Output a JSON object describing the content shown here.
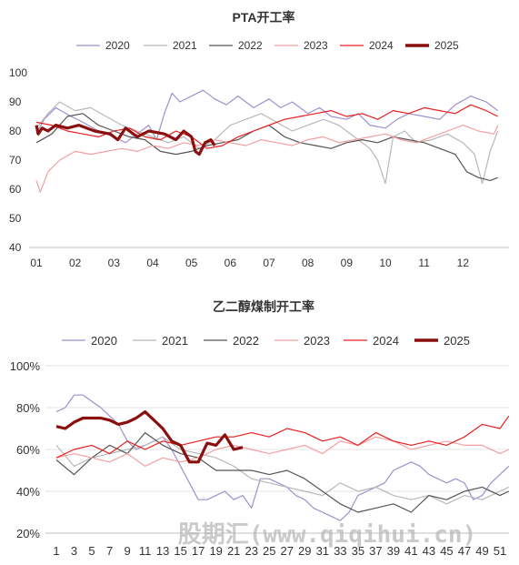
{
  "watermark": "股期汇(www.qiqihui.cn)",
  "chart_data": [
    {
      "type": "line",
      "title": "PTA开工率",
      "ylim": [
        40,
        100
      ],
      "yticks": [
        "40",
        "50",
        "60",
        "70",
        "80",
        "90",
        "100"
      ],
      "x_categories": [
        "01",
        "02",
        "03",
        "04",
        "05",
        "06",
        "07",
        "08",
        "09",
        "10",
        "11",
        "12"
      ],
      "grid": false,
      "legend_position": "top",
      "series": [
        {
          "name": "2020",
          "color": "#9e8fd0",
          "x": [
            1,
            1.2,
            1.5,
            1.9,
            2.2,
            2.6,
            3.0,
            3.3,
            3.6,
            3.9,
            4.1,
            4.3,
            4.5,
            4.7,
            5.0,
            5.3,
            5.6,
            5.9,
            6.2,
            6.6,
            7.0,
            7.3,
            7.6,
            8.0,
            8.3,
            8.6,
            9.0,
            9.3,
            9.6,
            10.0,
            10.3,
            10.6,
            11.0,
            11.4,
            11.8,
            12.2,
            12.6,
            12.9
          ],
          "y": [
            79,
            84,
            88,
            85,
            83,
            80,
            78,
            76,
            79,
            82,
            77,
            86,
            93,
            90,
            92,
            94,
            91,
            89,
            92,
            88,
            91,
            88,
            90,
            86,
            88,
            85,
            84,
            86,
            82,
            81,
            84,
            86,
            85,
            84,
            89,
            92,
            90,
            87
          ]
        },
        {
          "name": "2021",
          "color": "#b8b8b8",
          "x": [
            1,
            1.3,
            1.6,
            2.0,
            2.4,
            2.8,
            3.2,
            3.6,
            4.0,
            4.4,
            4.8,
            5.2,
            5.6,
            6.0,
            6.4,
            6.8,
            7.2,
            7.6,
            8.0,
            8.4,
            8.8,
            9.2,
            9.6,
            9.8,
            10.0,
            10.2,
            10.5,
            10.8,
            11.2,
            11.6,
            12.0,
            12.3,
            12.5,
            12.7,
            12.9
          ],
          "y": [
            81,
            86,
            90,
            87,
            88,
            85,
            82,
            80,
            78,
            76,
            78,
            74,
            77,
            82,
            84,
            86,
            83,
            80,
            82,
            84,
            82,
            78,
            74,
            70,
            62,
            78,
            80,
            76,
            77,
            79,
            76,
            72,
            62,
            73,
            80
          ]
        },
        {
          "name": "2022",
          "color": "#555555",
          "x": [
            1,
            1.4,
            1.8,
            2.2,
            2.6,
            3.0,
            3.4,
            3.8,
            4.2,
            4.6,
            5.0,
            5.4,
            5.8,
            6.2,
            6.6,
            7.0,
            7.4,
            7.8,
            8.2,
            8.6,
            9.0,
            9.4,
            9.8,
            10.2,
            10.6,
            11.0,
            11.4,
            11.8,
            12.1,
            12.4,
            12.7,
            12.9
          ],
          "y": [
            76,
            79,
            85,
            86,
            82,
            80,
            78,
            77,
            73,
            72,
            73,
            75,
            76,
            77,
            80,
            82,
            78,
            76,
            75,
            74,
            76,
            77,
            76,
            78,
            77,
            76,
            74,
            72,
            66,
            64,
            63,
            64
          ]
        },
        {
          "name": "2023",
          "color": "#f4a0a0",
          "x": [
            1,
            1.1,
            1.3,
            1.6,
            2.0,
            2.4,
            2.8,
            3.2,
            3.6,
            4.0,
            4.4,
            4.8,
            5.2,
            5.6,
            6.0,
            6.4,
            6.8,
            7.2,
            7.6,
            8.0,
            8.4,
            8.8,
            9.2,
            9.6,
            10.0,
            10.4,
            10.8,
            11.2,
            11.6,
            12.0,
            12.4,
            12.8,
            12.9
          ],
          "y": [
            63,
            59,
            66,
            70,
            73,
            72,
            73,
            74,
            73,
            75,
            74,
            76,
            75,
            77,
            76,
            75,
            77,
            76,
            75,
            77,
            78,
            76,
            77,
            78,
            79,
            77,
            76,
            78,
            80,
            82,
            80,
            79,
            82
          ]
        },
        {
          "name": "2024",
          "color": "#e82020",
          "x": [
            1,
            1.4,
            1.8,
            2.2,
            2.6,
            3.0,
            3.4,
            3.8,
            4.2,
            4.6,
            5.0,
            5.4,
            5.8,
            6.2,
            6.6,
            7.0,
            7.4,
            7.8,
            8.2,
            8.6,
            9.0,
            9.4,
            9.8,
            10.2,
            10.6,
            11.0,
            11.4,
            11.8,
            12.2,
            12.6,
            12.9
          ],
          "y": [
            83,
            82,
            80,
            79,
            78,
            80,
            81,
            78,
            77,
            80,
            78,
            74,
            75,
            78,
            80,
            82,
            84,
            85,
            86,
            87,
            85,
            86,
            84,
            87,
            86,
            88,
            87,
            86,
            89,
            87,
            85
          ]
        },
        {
          "name": "2025",
          "color": "#8b0f0f",
          "x": [
            1,
            1.05,
            1.15,
            1.3,
            1.5,
            1.8,
            2.1,
            2.5,
            2.9,
            3.1,
            3.3,
            3.6,
            3.9,
            4.3,
            4.6,
            4.8,
            5.0,
            5.1,
            5.2,
            5.35,
            5.5,
            5.6
          ],
          "y": [
            82,
            79,
            81,
            80,
            82,
            81,
            82,
            80,
            79,
            77,
            81,
            78,
            80,
            79,
            77,
            80,
            78,
            73,
            72,
            76,
            77,
            75
          ]
        }
      ]
    },
    {
      "type": "line",
      "title": "乙二醇煤制开工率",
      "ylim": [
        20,
        100
      ],
      "yticks": [
        "20%",
        "40%",
        "60%",
        "80%",
        "100%"
      ],
      "x_categories": [
        "1",
        "3",
        "5",
        "7",
        "9",
        "11",
        "13",
        "15",
        "17",
        "19",
        "21",
        "23",
        "25",
        "27",
        "29",
        "31",
        "33",
        "35",
        "37",
        "39",
        "41",
        "43",
        "45",
        "47",
        "49",
        "51"
      ],
      "grid": true,
      "legend_position": "top",
      "series": [
        {
          "name": "2020",
          "color": "#9e8fd0",
          "x": [
            1,
            2,
            3,
            4,
            5,
            6,
            7,
            8,
            9,
            10,
            11,
            12,
            13,
            14,
            15,
            16,
            17,
            18,
            19,
            20,
            21,
            22,
            23,
            24,
            25,
            26,
            27,
            28,
            29,
            30,
            31,
            32,
            33,
            34,
            35,
            36,
            37,
            38,
            39,
            40,
            41,
            42,
            43,
            44,
            45,
            46,
            47,
            48,
            49,
            50,
            51,
            52
          ],
          "y": [
            78,
            80,
            86,
            86,
            83,
            80,
            76,
            72,
            64,
            60,
            62,
            64,
            66,
            60,
            52,
            44,
            36,
            36,
            38,
            40,
            36,
            38,
            32,
            46,
            46,
            44,
            42,
            38,
            36,
            32,
            30,
            28,
            26,
            30,
            38,
            40,
            42,
            44,
            50,
            52,
            54,
            52,
            48,
            46,
            44,
            46,
            44,
            36,
            38,
            44,
            48,
            52
          ]
        },
        {
          "name": "2021",
          "color": "#b8b8b8",
          "x": [
            1,
            3,
            5,
            7,
            9,
            11,
            13,
            15,
            17,
            19,
            21,
            23,
            25,
            27,
            29,
            31,
            33,
            35,
            37,
            39,
            41,
            43,
            45,
            47,
            49,
            51,
            52
          ],
          "y": [
            62,
            52,
            56,
            58,
            60,
            62,
            66,
            60,
            58,
            56,
            52,
            46,
            44,
            42,
            40,
            38,
            44,
            40,
            42,
            38,
            36,
            38,
            34,
            38,
            36,
            40,
            42
          ]
        },
        {
          "name": "2022",
          "color": "#555555",
          "x": [
            1,
            3,
            5,
            7,
            9,
            11,
            13,
            15,
            17,
            19,
            21,
            23,
            25,
            27,
            29,
            31,
            33,
            35,
            37,
            39,
            41,
            43,
            45,
            47,
            49,
            51,
            52
          ],
          "y": [
            55,
            48,
            56,
            62,
            58,
            68,
            62,
            58,
            56,
            50,
            50,
            50,
            48,
            50,
            46,
            40,
            34,
            30,
            32,
            34,
            30,
            38,
            36,
            40,
            42,
            38,
            40
          ]
        },
        {
          "name": "2023",
          "color": "#f4a0a0",
          "x": [
            1,
            3,
            5,
            7,
            9,
            11,
            13,
            15,
            17,
            19,
            21,
            23,
            25,
            27,
            29,
            31,
            33,
            35,
            37,
            39,
            41,
            43,
            45,
            47,
            49,
            51,
            52
          ],
          "y": [
            56,
            58,
            56,
            54,
            58,
            52,
            56,
            54,
            56,
            60,
            62,
            60,
            58,
            60,
            62,
            58,
            64,
            62,
            66,
            64,
            60,
            62,
            64,
            62,
            62,
            58,
            60
          ]
        },
        {
          "name": "2024",
          "color": "#e82020",
          "x": [
            1,
            3,
            5,
            7,
            9,
            11,
            13,
            15,
            17,
            19,
            21,
            23,
            25,
            27,
            29,
            31,
            33,
            35,
            37,
            39,
            41,
            43,
            45,
            47,
            49,
            51,
            52
          ],
          "y": [
            56,
            60,
            62,
            58,
            64,
            60,
            64,
            62,
            64,
            66,
            66,
            68,
            66,
            70,
            68,
            64,
            66,
            62,
            68,
            64,
            62,
            64,
            62,
            66,
            72,
            70,
            76
          ]
        },
        {
          "name": "2025",
          "color": "#8b0f0f",
          "x": [
            1,
            2,
            3,
            4,
            5,
            6,
            7,
            8,
            9,
            10,
            11,
            12,
            13,
            14,
            15,
            16,
            17,
            18,
            19,
            20,
            21,
            22
          ],
          "y": [
            71,
            70,
            73,
            75,
            75,
            75,
            74,
            72,
            73,
            75,
            78,
            74,
            70,
            64,
            62,
            54,
            54,
            63,
            62,
            67,
            60,
            61
          ]
        }
      ]
    }
  ]
}
